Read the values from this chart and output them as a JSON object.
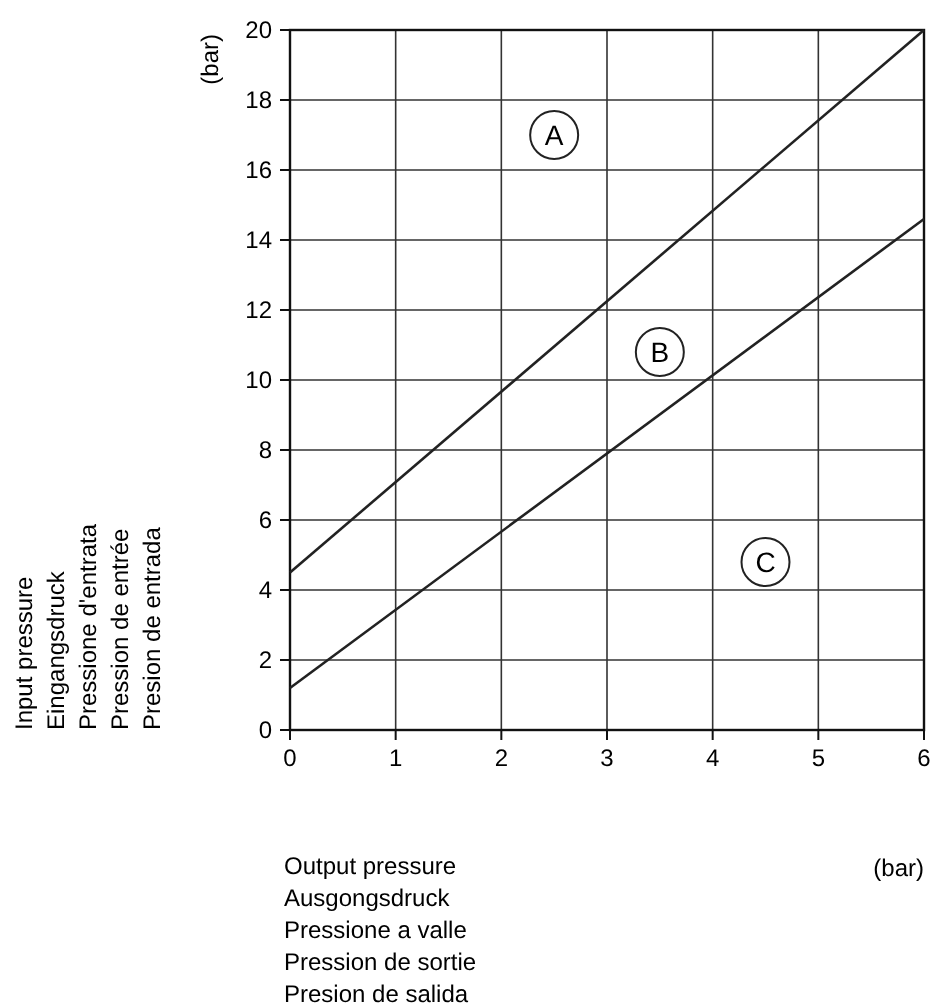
{
  "chart_data": {
    "type": "line",
    "xlabel": "Output pressure\nAusgongsdruck\nPressione a valle\nPression de sortie\nPresion de salida",
    "ylabel": "Input pressure\nEingangsdruck\nPressione d'entrata\nPression de entrée\nPresion de entrada",
    "x": [
      0,
      6
    ],
    "series": [
      {
        "color": "#222222",
        "values": [
          4.5,
          20
        ]
      },
      {
        "color": "#222222",
        "values": [
          1.2,
          14.6
        ]
      }
    ],
    "xlim": [
      0,
      6
    ],
    "xticks": [
      0,
      1,
      2,
      3,
      4,
      5,
      6
    ],
    "ylim": [
      0,
      20
    ],
    "yticks": [
      0,
      2,
      4,
      6,
      8,
      10,
      12,
      14,
      16,
      18,
      20
    ],
    "grid": true,
    "marker": "none",
    "line_style": "solid",
    "annotations": [
      "(bar)",
      "(bar)",
      {
        "text": "A",
        "x": 2.5,
        "y": 17
      },
      {
        "text": "B",
        "x": 3.5,
        "y": 10.8
      },
      {
        "text": "C",
        "x": 4.5,
        "y": 4.8
      }
    ]
  }
}
